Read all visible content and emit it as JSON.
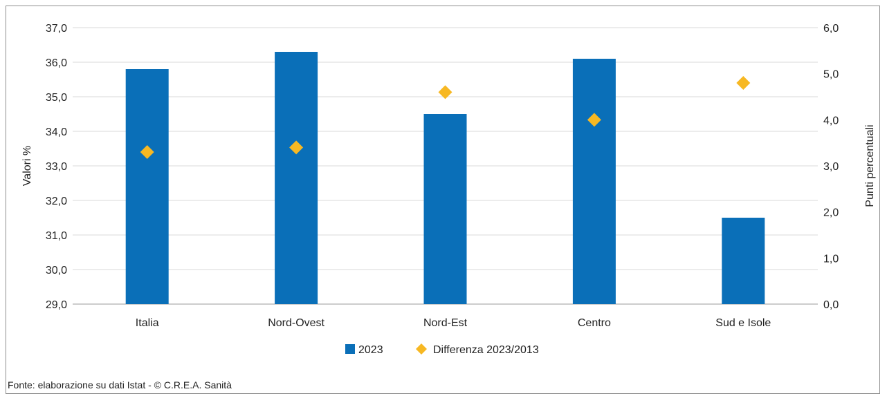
{
  "chart_data": {
    "type": "bar",
    "categories": [
      "Italia",
      "Nord-Ovest",
      "Nord-Est",
      "Centro",
      "Sud e Isole"
    ],
    "series": [
      {
        "name": "2023",
        "chart": "bar",
        "axis": "left",
        "color": "#0a6fb8",
        "values": [
          35.8,
          36.3,
          34.5,
          36.1,
          31.5
        ]
      },
      {
        "name": "Differenza 2023/2013",
        "chart": "scatter",
        "marker": "diamond",
        "axis": "right",
        "color": "#f7b823",
        "values": [
          3.3,
          3.4,
          4.6,
          4.0,
          4.8
        ]
      }
    ],
    "ylabel": "Valori %",
    "ylim": [
      29.0,
      37.0
    ],
    "yticks": [
      "29,0",
      "30,0",
      "31,0",
      "32,0",
      "33,0",
      "34,0",
      "35,0",
      "36,0",
      "37,0"
    ],
    "y2label": "Punti percentuali",
    "y2lim": [
      0.0,
      6.0
    ],
    "y2ticks": [
      "0,0",
      "1,0",
      "2,0",
      "3,0",
      "4,0",
      "5,0",
      "6,0"
    ],
    "grid": true,
    "legend_position": "bottom"
  },
  "source": "Fonte: elaborazione su dati Istat - © C.R.E.A. Sanità"
}
